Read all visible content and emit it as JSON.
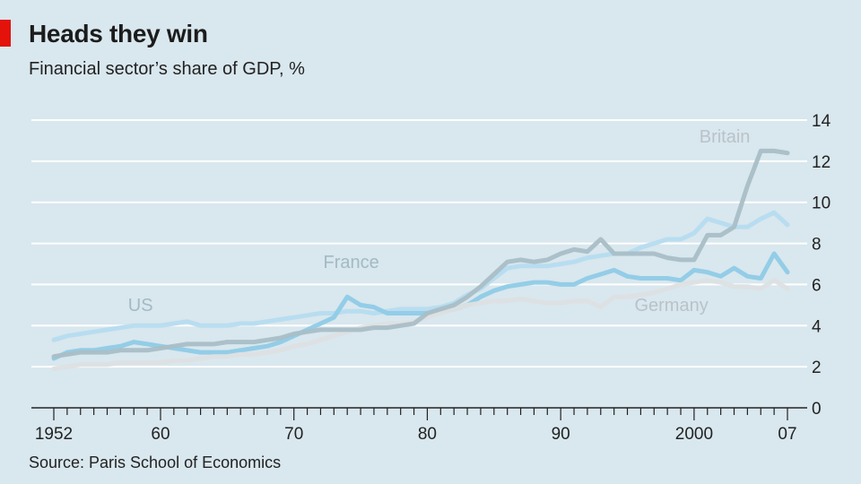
{
  "header": {
    "title": "Heads they win",
    "subtitle": "Financial sector’s share of GDP, %",
    "accent_color": "#e3120b"
  },
  "footer": {
    "source": "Source: Paris School of Economics"
  },
  "chart_data": {
    "type": "line",
    "title": "Heads they win",
    "subtitle": "Financial sector’s share of GDP, %",
    "xlabel": "",
    "ylabel": "",
    "xlim": [
      1952,
      2007
    ],
    "ylim": [
      0,
      14
    ],
    "y_ticks": [
      0,
      2,
      4,
      6,
      8,
      10,
      12,
      14
    ],
    "x_tick_labels": [
      {
        "x": 1952,
        "label": "1952"
      },
      {
        "x": 1960,
        "label": "60"
      },
      {
        "x": 1970,
        "label": "70"
      },
      {
        "x": 1980,
        "label": "80"
      },
      {
        "x": 1990,
        "label": "90"
      },
      {
        "x": 2000,
        "label": "2000"
      },
      {
        "x": 2007,
        "label": "07"
      }
    ],
    "grid": true,
    "y_axis_side": "right",
    "series": [
      {
        "name": "US",
        "color": "#b6dcef",
        "label_pos": {
          "x": 1958.5,
          "y": 4.7
        },
        "x": [
          1952,
          1953,
          1954,
          1955,
          1956,
          1957,
          1958,
          1959,
          1960,
          1961,
          1962,
          1963,
          1964,
          1965,
          1966,
          1967,
          1968,
          1969,
          1970,
          1971,
          1972,
          1973,
          1974,
          1975,
          1976,
          1977,
          1978,
          1979,
          1980,
          1981,
          1982,
          1983,
          1984,
          1985,
          1986,
          1987,
          1988,
          1989,
          1990,
          1991,
          1992,
          1993,
          1994,
          1995,
          1996,
          1997,
          1998,
          1999,
          2000,
          2001,
          2002,
          2003,
          2004,
          2005,
          2006,
          2007
        ],
        "values": [
          3.3,
          3.5,
          3.6,
          3.7,
          3.8,
          3.9,
          4.0,
          4.0,
          4.0,
          4.1,
          4.2,
          4.0,
          4.0,
          4.0,
          4.1,
          4.1,
          4.2,
          4.3,
          4.4,
          4.5,
          4.6,
          4.6,
          4.7,
          4.7,
          4.6,
          4.7,
          4.8,
          4.8,
          4.8,
          4.9,
          5.1,
          5.5,
          5.8,
          6.3,
          6.8,
          6.9,
          6.9,
          6.9,
          7.0,
          7.1,
          7.3,
          7.4,
          7.5,
          7.5,
          7.8,
          8.0,
          8.2,
          8.2,
          8.5,
          9.2,
          9.0,
          8.8,
          8.8,
          9.2,
          9.5,
          8.9
        ]
      },
      {
        "name": "France",
        "color": "#8fcbe6",
        "label_pos": {
          "x": 1974.3,
          "y": 6.8
        },
        "x": [
          1952,
          1953,
          1954,
          1955,
          1956,
          1957,
          1958,
          1959,
          1960,
          1961,
          1962,
          1963,
          1964,
          1965,
          1966,
          1967,
          1968,
          1969,
          1970,
          1971,
          1972,
          1973,
          1974,
          1975,
          1976,
          1977,
          1978,
          1979,
          1980,
          1981,
          1982,
          1983,
          1984,
          1985,
          1986,
          1987,
          1988,
          1989,
          1990,
          1991,
          1992,
          1993,
          1994,
          1995,
          1996,
          1997,
          1998,
          1999,
          2000,
          2001,
          2002,
          2003,
          2004,
          2005,
          2006,
          2007
        ],
        "values": [
          2.4,
          2.7,
          2.8,
          2.8,
          2.9,
          3.0,
          3.2,
          3.1,
          3.0,
          2.9,
          2.8,
          2.7,
          2.7,
          2.7,
          2.8,
          2.9,
          3.0,
          3.2,
          3.5,
          3.8,
          4.1,
          4.4,
          5.4,
          5.0,
          4.9,
          4.6,
          4.6,
          4.6,
          4.6,
          4.7,
          4.8,
          5.0,
          5.4,
          5.7,
          5.9,
          6.0,
          6.1,
          6.1,
          6.0,
          6.0,
          6.3,
          6.5,
          6.7,
          6.4,
          6.3,
          6.3,
          6.3,
          6.2,
          6.7,
          6.6,
          6.4,
          6.8,
          6.4,
          6.3,
          7.5,
          6.6
        ]
      },
      {
        "name": "Germany",
        "color": "#dde0e2",
        "label_pos": {
          "x": 1998.3,
          "y": 4.7
        },
        "x": [
          1952,
          1953,
          1954,
          1955,
          1956,
          1957,
          1958,
          1959,
          1960,
          1961,
          1962,
          1963,
          1964,
          1965,
          1966,
          1967,
          1968,
          1969,
          1970,
          1971,
          1972,
          1973,
          1974,
          1975,
          1976,
          1977,
          1978,
          1979,
          1980,
          1981,
          1982,
          1983,
          1984,
          1985,
          1986,
          1987,
          1988,
          1989,
          1990,
          1991,
          1992,
          1993,
          1994,
          1995,
          1996,
          1997,
          1998,
          1999,
          2000,
          2001,
          2002,
          2003,
          2004,
          2005,
          2006,
          2007
        ],
        "values": [
          1.9,
          2.0,
          2.1,
          2.1,
          2.1,
          2.2,
          2.2,
          2.2,
          2.2,
          2.3,
          2.3,
          2.4,
          2.5,
          2.5,
          2.6,
          2.6,
          2.7,
          2.8,
          3.0,
          3.1,
          3.3,
          3.5,
          3.7,
          3.9,
          4.0,
          4.1,
          4.1,
          4.2,
          4.4,
          4.6,
          4.8,
          5.0,
          5.1,
          5.2,
          5.2,
          5.3,
          5.2,
          5.1,
          5.1,
          5.2,
          5.2,
          4.9,
          5.4,
          5.4,
          5.5,
          5.6,
          5.8,
          6.0,
          6.1,
          6.2,
          6.1,
          5.9,
          5.9,
          5.8,
          6.2,
          5.8
        ]
      },
      {
        "name": "Britain",
        "color": "#a9bec6",
        "label_pos": {
          "x": 2002.3,
          "y": 12.9
        },
        "x": [
          1952,
          1953,
          1954,
          1955,
          1956,
          1957,
          1958,
          1959,
          1960,
          1961,
          1962,
          1963,
          1964,
          1965,
          1966,
          1967,
          1968,
          1969,
          1970,
          1971,
          1972,
          1973,
          1974,
          1975,
          1976,
          1977,
          1978,
          1979,
          1980,
          1981,
          1982,
          1983,
          1984,
          1985,
          1986,
          1987,
          1988,
          1989,
          1990,
          1991,
          1992,
          1993,
          1994,
          1995,
          1996,
          1997,
          1998,
          1999,
          2000,
          2001,
          2002,
          2003,
          2004,
          2005,
          2006,
          2007
        ],
        "values": [
          2.5,
          2.6,
          2.7,
          2.7,
          2.7,
          2.8,
          2.8,
          2.8,
          2.9,
          3.0,
          3.1,
          3.1,
          3.1,
          3.2,
          3.2,
          3.2,
          3.3,
          3.4,
          3.6,
          3.7,
          3.8,
          3.8,
          3.8,
          3.8,
          3.9,
          3.9,
          4.0,
          4.1,
          4.6,
          4.8,
          5.0,
          5.4,
          5.9,
          6.5,
          7.1,
          7.2,
          7.1,
          7.2,
          7.5,
          7.7,
          7.6,
          8.2,
          7.5,
          7.5,
          7.5,
          7.5,
          7.3,
          7.2,
          7.2,
          8.4,
          8.4,
          8.8,
          10.8,
          12.5,
          12.5,
          12.4
        ]
      }
    ]
  }
}
